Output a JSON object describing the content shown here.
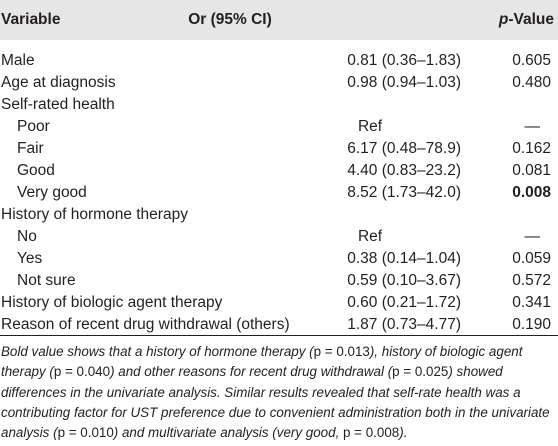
{
  "table": {
    "headers": {
      "variable": "Variable",
      "or": "Or (95% CI)",
      "p_italic": "p",
      "p_rest": "-Value"
    },
    "rows": [
      {
        "label": "Male",
        "or": "0.81 (0.36–1.83)",
        "p": "0.605"
      },
      {
        "label": "Age at diagnosis",
        "or": "0.98 (0.94–1.03)",
        "p": "0.480"
      },
      {
        "label": "Self-rated health",
        "or": "",
        "p": ""
      },
      {
        "label": "Poor",
        "or": "Ref",
        "p": "—"
      },
      {
        "label": "Fair",
        "or": "6.17 (0.48–78.9)",
        "p": "0.162"
      },
      {
        "label": "Good",
        "or": "4.40 (0.83–23.2)",
        "p": "0.081"
      },
      {
        "label": "Very good",
        "or": "8.52 (1.73–42.0)",
        "p": "0.008",
        "p_bold": true
      },
      {
        "label": "History of hormone therapy",
        "or": "",
        "p": ""
      },
      {
        "label": "No",
        "or": "Ref",
        "p": "—"
      },
      {
        "label": "Yes",
        "or": "0.38 (0.14–1.04)",
        "p": "0.059"
      },
      {
        "label": "Not sure",
        "or": "0.59 (0.10–3.67)",
        "p": "0.572"
      },
      {
        "label": "History of biologic agent therapy",
        "or": "0.60 (0.21–1.72)",
        "p": "0.341"
      },
      {
        "label": "Reason of recent drug withdrawal (others)",
        "or": "1.87 (0.73–4.77)",
        "p": "0.190"
      }
    ]
  },
  "footnote": {
    "s1": "Bold value shows that a history of hormone therapy (",
    "p1": "p = 0.013",
    "s2": "), history of biologic agent therapy (",
    "p2": "p = 0.040",
    "s3": ") and other reasons for recent drug withdrawal (",
    "p3": "p = 0.025",
    "s4": ") showed differences in the univariate analysis. Similar results revealed that self-rate health was a contributing factor for UST preference due to convenient administration both in the univariate analysis (",
    "p4": "p = 0.010",
    "s5": ") and multivariate analysis (very good, ",
    "p5": "p = 0.008",
    "s6": ")."
  }
}
